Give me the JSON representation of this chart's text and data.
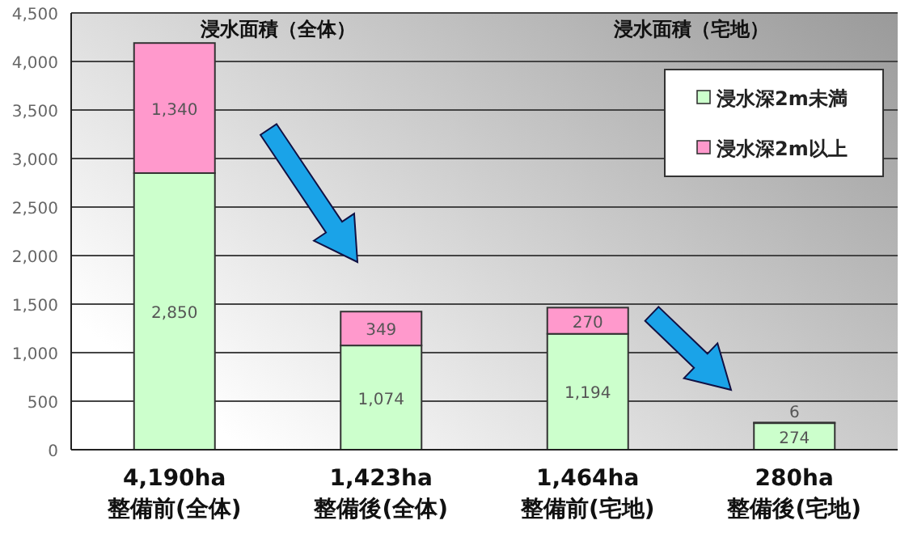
{
  "chart_data": {
    "type": "bar",
    "stacked": true,
    "categories": [
      "4,190ha\n整備前(全体)",
      "1,423ha\n整備後(全体)",
      "1,464ha\n整備前(宅地)",
      "280ha\n整備後(宅地)"
    ],
    "series": [
      {
        "name": "浸水深2m未満",
        "color": "#ccffcc",
        "values": [
          2850,
          1074,
          1194,
          274
        ],
        "value_labels": [
          "2,850",
          "1,074",
          "1,194",
          "274"
        ]
      },
      {
        "name": "浸水深2m以上",
        "color": "#ff99cc",
        "values": [
          1340,
          349,
          270,
          6
        ],
        "value_labels": [
          "1,340",
          "349",
          "270",
          "6"
        ]
      }
    ],
    "ylim": [
      0,
      4500
    ],
    "yticks": [
      0,
      500,
      {
        "value": 1000,
        "label": "1,000"
      },
      {
        "value": 1500,
        "label": "1,500"
      },
      {
        "value": 2000,
        "label": "2,000"
      },
      {
        "value": 2500,
        "label": "2,500"
      },
      {
        "value": 3000,
        "label": "3,000"
      },
      {
        "value": 3500,
        "label": "3,500"
      },
      {
        "value": 4000,
        "label": "4,000"
      },
      {
        "value": 4500,
        "label": "4,500"
      }
    ],
    "grid": "y",
    "legend": "top right",
    "annotations": [
      "浸水面積（全体）",
      "浸水面積（宅地）"
    ]
  }
}
